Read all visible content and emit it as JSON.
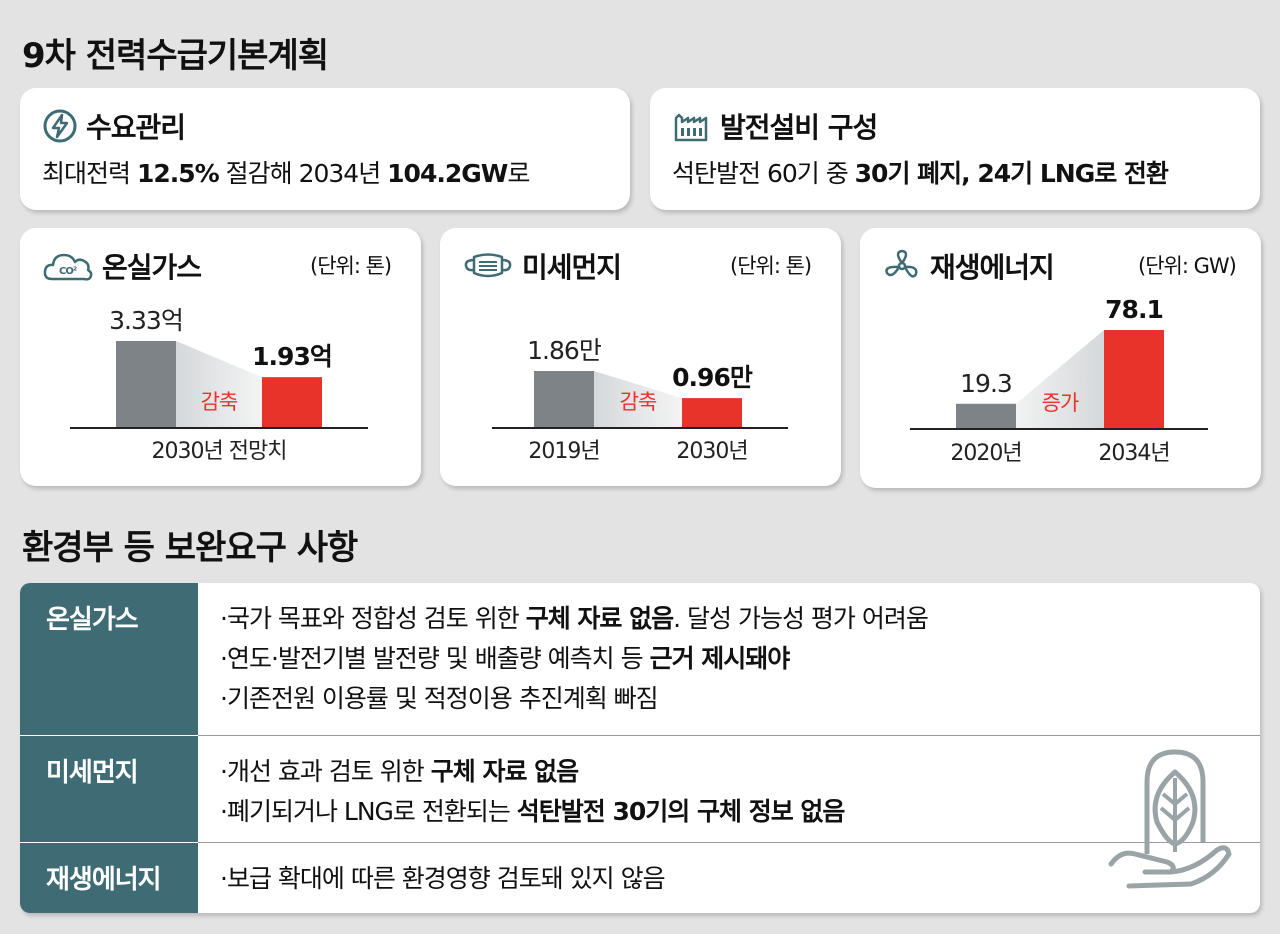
{
  "title": "9차 전력수급기본계획",
  "demand": {
    "heading": "수요관리",
    "text_a": "최대전력 ",
    "text_b": "12.5%",
    "text_c": " 절감해 2034년 ",
    "text_d": "104.2GW",
    "text_e": "로"
  },
  "facility": {
    "heading": "발전설비 구성",
    "text_a": "석탄발전 60기 중 ",
    "text_b": "30기 폐지, 24기 LNG로 전환"
  },
  "chart_data": [
    {
      "type": "bar",
      "title": "온실가스",
      "unit": "(단위: 톤)",
      "categories": [
        "2030년 전망치",
        ""
      ],
      "values": [
        3.33,
        1.93
      ],
      "value_labels": [
        "3.33억",
        "1.93억"
      ],
      "change_label": "감축",
      "xlabel": "2030년 전망치"
    },
    {
      "type": "bar",
      "title": "미세먼지",
      "unit": "(단위: 톤)",
      "categories": [
        "2019년",
        "2030년"
      ],
      "values": [
        1.86,
        0.96
      ],
      "value_labels": [
        "1.86만",
        "0.96만"
      ],
      "change_label": "감축"
    },
    {
      "type": "bar",
      "title": "재생에너지",
      "unit": "(단위: GW)",
      "categories": [
        "2020년",
        "2034년"
      ],
      "values": [
        19.3,
        78.1
      ],
      "value_labels": [
        "19.3",
        "78.1"
      ],
      "change_label": "증가"
    }
  ],
  "colors": {
    "before": "#7d8386",
    "after": "#e8332a",
    "accent": "#3e6b74"
  },
  "section2_title": "환경부 등 보완요구 사항",
  "table": {
    "rows": [
      {
        "head": "온실가스",
        "lines": [
          {
            "a": "·국가 목표와 정합성 검토 위한 ",
            "b": "구체 자료 없음",
            "c": ". 달성 가능성 평가 어려움"
          },
          {
            "a": "·연도·발전기별 발전량 및 배출량 예측치 등 ",
            "b": "근거 제시돼야",
            "c": ""
          },
          {
            "a": "·기존전원 이용률 및 적정이용 추진계획 빠짐",
            "b": "",
            "c": ""
          }
        ]
      },
      {
        "head": "미세먼지",
        "lines": [
          {
            "a": "·개선 효과 검토 위한 ",
            "b": "구체 자료 없음",
            "c": ""
          },
          {
            "a": "·폐기되거나 LNG로 전환되는 ",
            "b": "석탄발전 30기의 구체 정보 없음",
            "c": ""
          }
        ]
      },
      {
        "head": "재생에너지",
        "lines": [
          {
            "a": "·보급 확대에 따른 환경영향 검토돼 있지 않음",
            "b": "",
            "c": ""
          }
        ]
      }
    ]
  },
  "icons": [
    "lightning-icon",
    "factory-icon",
    "co2-cloud-icon",
    "mask-icon",
    "fan-icon",
    "leaf-hand-icon"
  ]
}
